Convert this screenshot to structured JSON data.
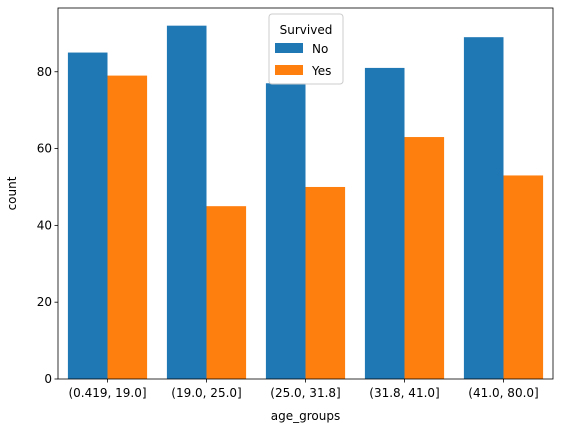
{
  "chart_data": {
    "type": "bar",
    "title": "",
    "xlabel": "age_groups",
    "ylabel": "count",
    "categories": [
      "(0.419, 19.0]",
      "(19.0, 25.0]",
      "(25.0, 31.8]",
      "(31.8, 41.0]",
      "(41.0, 80.0]"
    ],
    "series": [
      {
        "name": "No",
        "color": "#1f77b4",
        "values": [
          85,
          92,
          77,
          81,
          89
        ]
      },
      {
        "name": "Yes",
        "color": "#ff7f0e",
        "values": [
          79,
          45,
          50,
          63,
          53
        ]
      }
    ],
    "ylim": [
      0,
      96.6
    ],
    "yticks": [
      0,
      20,
      40,
      60,
      80
    ],
    "grid": false,
    "legend": {
      "title": "Survived",
      "placement": "top-center"
    }
  }
}
